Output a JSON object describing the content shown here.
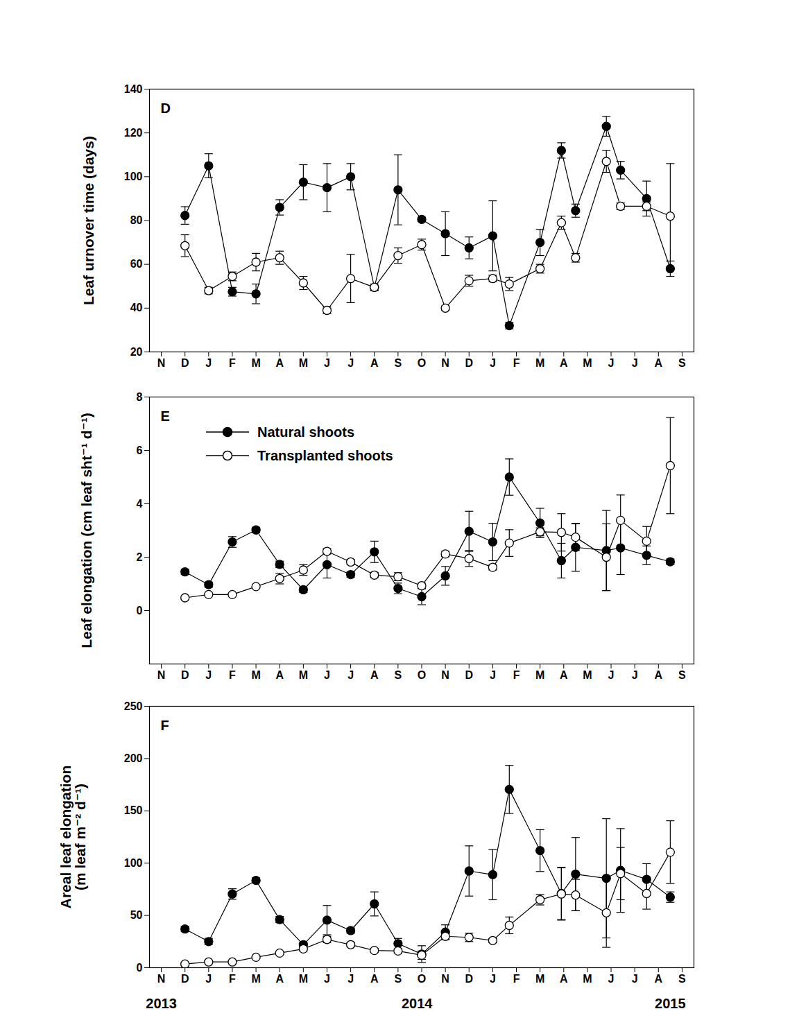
{
  "chart_data": [
    {
      "type": "line",
      "title": "D",
      "y_label": "Leaf urnover time (days)",
      "x": [
        1,
        2,
        3,
        4,
        5,
        6,
        7,
        8,
        9,
        10,
        11,
        12,
        13,
        14,
        14.7,
        16,
        16.9,
        17.5,
        18.8,
        19.4,
        20.5,
        21.5
      ],
      "xlim": [
        -0.5,
        22.5
      ],
      "xticks": [
        {
          "value": 0,
          "label": "N"
        },
        {
          "value": 1,
          "label": "D"
        },
        {
          "value": 2,
          "label": "J"
        },
        {
          "value": 3,
          "label": "F"
        },
        {
          "value": 4,
          "label": "M"
        },
        {
          "value": 5,
          "label": "A"
        },
        {
          "value": 6,
          "label": "M"
        },
        {
          "value": 7,
          "label": "J"
        },
        {
          "value": 8,
          "label": "J"
        },
        {
          "value": 9,
          "label": "A"
        },
        {
          "value": 10,
          "label": "S"
        },
        {
          "value": 11,
          "label": "O"
        },
        {
          "value": 12,
          "label": "N"
        },
        {
          "value": 13,
          "label": "D"
        },
        {
          "value": 14,
          "label": "J"
        },
        {
          "value": 15,
          "label": "F"
        },
        {
          "value": 16,
          "label": "M"
        },
        {
          "value": 17,
          "label": "A"
        },
        {
          "value": 18,
          "label": "M"
        },
        {
          "value": 19,
          "label": "J"
        },
        {
          "value": 20,
          "label": "J"
        },
        {
          "value": 21,
          "label": "A"
        },
        {
          "value": 22,
          "label": "S"
        }
      ],
      "ylim": [
        20,
        140
      ],
      "yticks": [
        20,
        40,
        60,
        80,
        100,
        120,
        140
      ],
      "grid": false,
      "series": [
        {
          "name": "Natural shoots",
          "color": "#000000",
          "marker": "filled_circle",
          "values": [
            82.3,
            105,
            47.5,
            46.5,
            86,
            97.5,
            95,
            100,
            49.5,
            94,
            80.5,
            74,
            67.5,
            73,
            32,
            70,
            112,
            84.5,
            123,
            103,
            90,
            58
          ],
          "errors": [
            4,
            5.5,
            2,
            4.5,
            3.5,
            8,
            11,
            6,
            1.5,
            16,
            1,
            10,
            5,
            16,
            1.5,
            6,
            3.5,
            3,
            4.5,
            4,
            8,
            3.5
          ]
        },
        {
          "name": "Transplanted shoots",
          "color": "#000000",
          "marker": "open_circle",
          "values": [
            68.5,
            48,
            54.5,
            61,
            63,
            51.5,
            39,
            53.5,
            49.5,
            64,
            69,
            40,
            52.5,
            53.5,
            51,
            58,
            79,
            63,
            107,
            86.5,
            86.5,
            82
          ],
          "errors": [
            5,
            1.5,
            2,
            4,
            3,
            3,
            1.5,
            11,
            1.5,
            3.5,
            2.5,
            1,
            2.5,
            1.5,
            3,
            2,
            3,
            2,
            5,
            1.5,
            2,
            24
          ]
        }
      ]
    },
    {
      "type": "line",
      "title": "E",
      "y_label": "Leaf elongation (cm leaf sht⁻¹ d⁻¹)",
      "x": [
        1,
        2,
        3,
        4,
        5,
        6,
        7,
        8,
        9,
        10,
        11,
        12,
        13,
        14,
        14.7,
        16,
        16.9,
        17.5,
        18.8,
        19.4,
        20.5,
        21.5
      ],
      "xlim": [
        -0.5,
        22.5
      ],
      "xticks": [
        {
          "value": 0,
          "label": "N"
        },
        {
          "value": 1,
          "label": "D"
        },
        {
          "value": 2,
          "label": "J"
        },
        {
          "value": 3,
          "label": "F"
        },
        {
          "value": 4,
          "label": "M"
        },
        {
          "value": 5,
          "label": "A"
        },
        {
          "value": 6,
          "label": "M"
        },
        {
          "value": 7,
          "label": "J"
        },
        {
          "value": 8,
          "label": "J"
        },
        {
          "value": 9,
          "label": "A"
        },
        {
          "value": 10,
          "label": "S"
        },
        {
          "value": 11,
          "label": "O"
        },
        {
          "value": 12,
          "label": "N"
        },
        {
          "value": 13,
          "label": "D"
        },
        {
          "value": 14,
          "label": "J"
        },
        {
          "value": 15,
          "label": "F"
        },
        {
          "value": 16,
          "label": "M"
        },
        {
          "value": 17,
          "label": "A"
        },
        {
          "value": 18,
          "label": "M"
        },
        {
          "value": 19,
          "label": "J"
        },
        {
          "value": 20,
          "label": "J"
        },
        {
          "value": 21,
          "label": "A"
        },
        {
          "value": 22,
          "label": "S"
        }
      ],
      "ylim": [
        -2,
        8
      ],
      "yticks": [
        0,
        2,
        4,
        6,
        8
      ],
      "grid": false,
      "legend": "top-left",
      "series": [
        {
          "name": "Natural shoots",
          "color": "#000000",
          "marker": "filled_circle",
          "values": [
            1.45,
            0.97,
            2.57,
            3.02,
            1.73,
            0.78,
            1.72,
            1.35,
            2.2,
            0.83,
            0.52,
            1.3,
            2.97,
            2.57,
            5.0,
            3.28,
            1.87,
            2.37,
            2.25,
            2.35,
            2.07,
            1.83
          ],
          "errors": [
            0.1,
            0.1,
            0.2,
            0.1,
            0.12,
            0.1,
            0.5,
            0.1,
            0.4,
            0.2,
            0.3,
            0.35,
            0.75,
            0.7,
            0.68,
            0.55,
            0.65,
            0.9,
            1.5,
            1.0,
            0.35,
            0.1
          ]
        },
        {
          "name": "Transplanted shoots",
          "color": "#000000",
          "marker": "open_circle",
          "values": [
            0.48,
            0.6,
            0.6,
            0.9,
            1.2,
            1.52,
            2.22,
            1.82,
            1.33,
            1.27,
            0.93,
            2.12,
            1.95,
            1.62,
            2.53,
            2.95,
            2.93,
            2.75,
            2.0,
            3.38,
            2.6,
            5.43
          ],
          "errors": [
            0.05,
            0.05,
            0.05,
            0.07,
            0.2,
            0.2,
            0.1,
            0.1,
            0.1,
            0.15,
            0.1,
            0.1,
            0.3,
            0.1,
            0.5,
            0.15,
            0.7,
            0.5,
            1.25,
            0.95,
            0.55,
            1.8
          ]
        }
      ]
    },
    {
      "type": "line",
      "title": "F",
      "y_label": "Areal leaf elongation\n(m leaf m⁻² d⁻¹)",
      "x": [
        1,
        2,
        3,
        4,
        5,
        6,
        7,
        8,
        9,
        10,
        11,
        12,
        13,
        14,
        14.7,
        16,
        16.9,
        17.5,
        18.8,
        19.4,
        20.5,
        21.5
      ],
      "xlim": [
        -0.5,
        22.5
      ],
      "xticks": [
        {
          "value": 0,
          "label": "N"
        },
        {
          "value": 1,
          "label": "D"
        },
        {
          "value": 2,
          "label": "J"
        },
        {
          "value": 3,
          "label": "F"
        },
        {
          "value": 4,
          "label": "M"
        },
        {
          "value": 5,
          "label": "A"
        },
        {
          "value": 6,
          "label": "M"
        },
        {
          "value": 7,
          "label": "J"
        },
        {
          "value": 8,
          "label": "J"
        },
        {
          "value": 9,
          "label": "A"
        },
        {
          "value": 10,
          "label": "S"
        },
        {
          "value": 11,
          "label": "O"
        },
        {
          "value": 12,
          "label": "N"
        },
        {
          "value": 13,
          "label": "D"
        },
        {
          "value": 14,
          "label": "J"
        },
        {
          "value": 15,
          "label": "F"
        },
        {
          "value": 16,
          "label": "M"
        },
        {
          "value": 17,
          "label": "A"
        },
        {
          "value": 18,
          "label": "M"
        },
        {
          "value": 19,
          "label": "J"
        },
        {
          "value": 20,
          "label": "J"
        },
        {
          "value": 21,
          "label": "A"
        },
        {
          "value": 22,
          "label": "S"
        }
      ],
      "ylim": [
        0,
        250
      ],
      "yticks": [
        0,
        50,
        100,
        150,
        200,
        250
      ],
      "grid": false,
      "annotations": [
        {
          "text": "2013",
          "x": 0
        },
        {
          "text": "2014",
          "x": 10.8
        },
        {
          "text": "2015",
          "x": 21.5
        }
      ],
      "series": [
        {
          "name": "Natural shoots",
          "color": "#000000",
          "marker": "filled_circle",
          "values": [
            37,
            25,
            70.5,
            83.5,
            46,
            22,
            45.5,
            35.5,
            61,
            23,
            13,
            34,
            92.5,
            89,
            170.5,
            112,
            71,
            89.5,
            85.5,
            93,
            84.5,
            67.5
          ],
          "errors": [
            2.5,
            3,
            5,
            2.5,
            3,
            2,
            14,
            2.5,
            11.5,
            5,
            8,
            7,
            24,
            24,
            23,
            20,
            25,
            35,
            57,
            40,
            15,
            5
          ]
        },
        {
          "name": "Transplanted shoots",
          "color": "#000000",
          "marker": "open_circle",
          "values": [
            3.5,
            5.5,
            5.5,
            10,
            14,
            18,
            27,
            22,
            16.5,
            16,
            12,
            30,
            29,
            26,
            40.5,
            65,
            70.5,
            69.5,
            52.5,
            90,
            71,
            110.5
          ],
          "errors": [
            1,
            1,
            1,
            1,
            1.5,
            2,
            3,
            2,
            2,
            2,
            4,
            3,
            4,
            2,
            8,
            5,
            25,
            15,
            33,
            25,
            15,
            30
          ]
        }
      ]
    }
  ]
}
